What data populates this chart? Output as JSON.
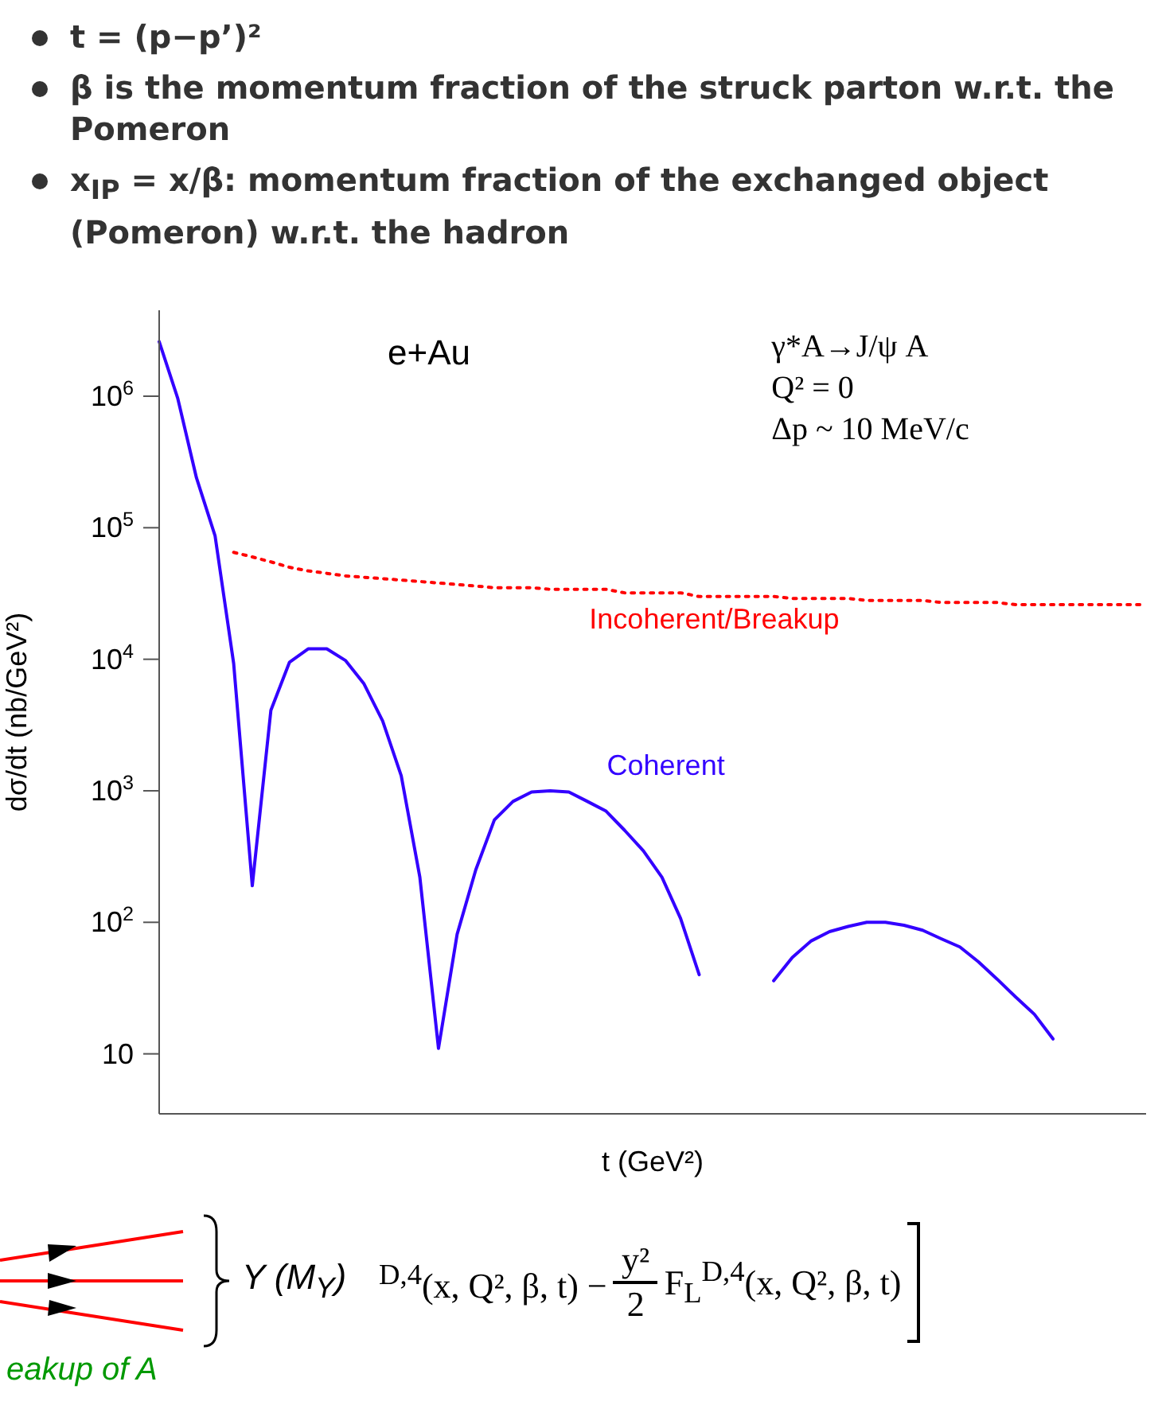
{
  "chart_data": {
    "type": "line",
    "xlabel": "t (GeV²)",
    "ylabel": "dσ/dt  (nb/GeV²)",
    "categories": [
      null,
      null,
      null,
      null,
      null,
      null,
      null,
      null,
      null,
      null,
      null,
      null,
      null,
      null,
      null,
      null,
      null,
      null,
      null,
      null,
      null,
      null,
      null,
      null,
      null,
      null,
      null,
      null,
      null,
      null,
      null,
      null,
      null,
      null,
      null,
      null,
      null,
      null,
      null,
      null,
      null,
      null,
      null,
      null,
      null,
      null,
      null,
      null,
      null,
      null,
      null,
      null,
      null,
      null
    ],
    "series": [
      {
        "name": "Coherent",
        "color": "#3300ff",
        "line_style": "solid",
        "values": [
          2600000,
          960000,
          240000,
          87000,
          9300,
          190,
          4100,
          9500,
          12000,
          12000,
          9800,
          6500,
          3400,
          1300,
          220,
          11,
          81,
          250,
          600,
          830,
          980,
          1000,
          980,
          830,
          700,
          500,
          350,
          220,
          107,
          40,
          null,
          null,
          null,
          36,
          54,
          72,
          85,
          93,
          100,
          100,
          95,
          87,
          75,
          65,
          50,
          37,
          27,
          20,
          13,
          null,
          null,
          null,
          null,
          null
        ]
      },
      {
        "name": "Incoherent/Breakup",
        "color": "#ff0000",
        "line_style": "dotted",
        "values": [
          null,
          null,
          null,
          null,
          65000,
          60000,
          55000,
          50000,
          47000,
          45000,
          43000,
          42000,
          41000,
          40000,
          39000,
          38000,
          37000,
          36000,
          35000,
          35000,
          35000,
          34000,
          34000,
          34000,
          34000,
          32000,
          32000,
          32000,
          32000,
          30000,
          30000,
          30000,
          30000,
          30000,
          29000,
          29000,
          29000,
          29000,
          28000,
          28000,
          28000,
          28000,
          27000,
          27000,
          27000,
          27000,
          26000,
          26000,
          26000,
          26000,
          26000,
          26000,
          26000,
          26000
        ]
      }
    ],
    "log": "y",
    "ylim": [
      3.5,
      4500000
    ],
    "yticks": [
      10,
      {
        "value": 100,
        "label": "10$^{2}$"
      },
      {
        "value": 1000,
        "label": "10$^{3}$"
      },
      {
        "value": 10000,
        "label": "10$^{4}$"
      },
      {
        "value": 100000,
        "label": "10$^{5}$"
      },
      {
        "value": 1000000,
        "label": "10$^{6}$"
      }
    ],
    "tick_labels": "y",
    "annotations": [
      "t = (p−p’)²",
      "β is the momentum fraction of the struck parton w.r.t. the Pomeron",
      "x$_{IP}$ = x/β: momentum fraction of the exchanged object (Pomeron) w.r.t. the hadron",
      "e+Au",
      "γ*A→J/ψ A",
      "Q² = 0",
      "Δp ~ 10 MeV/c",
      "Y (M$_{Y}$)",
      "eakup of A",
      "$^{D,4}$(x, Q², β, t) −",
      "y²",
      "2",
      "F$_{L}$$^{D,4}$(x, Q², β, t)"
    ]
  }
}
